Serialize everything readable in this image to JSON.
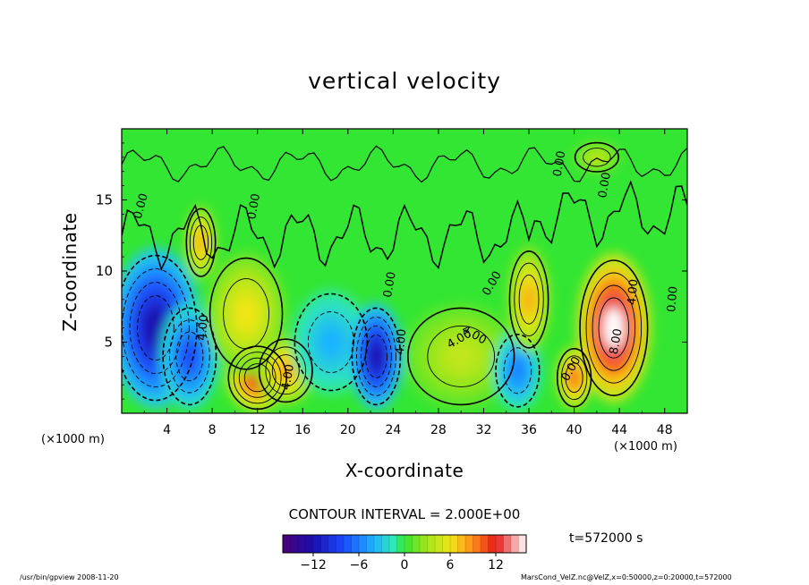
{
  "chart_data": {
    "type": "heatmap",
    "title": "vertical velocity",
    "xlabel": "X-coordinate",
    "ylabel": "Z-coordinate",
    "x_unit_left": "(×1000 m)",
    "x_unit_right": "(×1000 m)",
    "xlim": [
      0,
      50
    ],
    "ylim": [
      0,
      20
    ],
    "x_ticks": [
      "4",
      "8",
      "12",
      "16",
      "20",
      "24",
      "28",
      "32",
      "36",
      "40",
      "44",
      "48"
    ],
    "y_ticks": [
      "5",
      "10",
      "15"
    ],
    "contour_interval_text": "CONTOUR INTERVAL = 2.000E+00",
    "colorbar": {
      "range": [
        -16,
        16
      ],
      "ticks": [
        "−12",
        "−6",
        "0",
        "6",
        "12"
      ]
    },
    "contour_labels": [
      "0.00",
      "0.00",
      "0.00",
      "0.00",
      "0.00",
      "0.00",
      "0.00",
      "4.00",
      "4.00",
      "4.00",
      "4.00",
      "4.00",
      "8.00",
      "0.00",
      "4.00"
    ],
    "time_text": "t=572000 s",
    "features": [
      {
        "x": 3,
        "z": 6,
        "value": -12
      },
      {
        "x": 6,
        "z": 4,
        "value": -8
      },
      {
        "x": 7,
        "z": 12,
        "value": 8
      },
      {
        "x": 12,
        "z": 2.5,
        "value": 12
      },
      {
        "x": 11,
        "z": 7,
        "value": 6
      },
      {
        "x": 14.5,
        "z": 3,
        "value": 8
      },
      {
        "x": 18.5,
        "z": 5,
        "value": -4
      },
      {
        "x": 22.5,
        "z": 4,
        "value": -12
      },
      {
        "x": 30,
        "z": 4,
        "value": 4
      },
      {
        "x": 35,
        "z": 3,
        "value": -6
      },
      {
        "x": 36,
        "z": 8,
        "value": 8
      },
      {
        "x": 40,
        "z": 2.5,
        "value": 10
      },
      {
        "x": 43.5,
        "z": 6,
        "value": 16
      },
      {
        "x": 42,
        "z": 18,
        "value": 4
      }
    ]
  },
  "footer": {
    "left": "/usr/bin/gpview  2008-11-20",
    "right": "MarsCond_VelZ.nc@VelZ,x=0:50000,z=0:20000,t=572000"
  }
}
